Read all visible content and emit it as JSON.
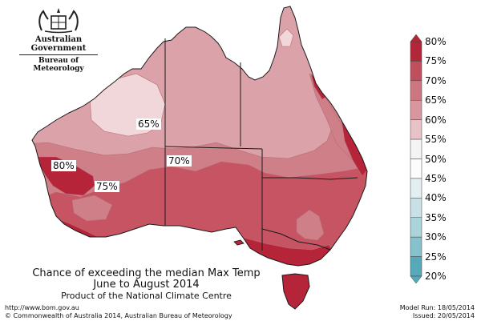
{
  "header": {
    "org_name": "Australian Government",
    "bureau": "Bureau of Meteorology"
  },
  "colors": {
    "land_outline": "#1a1a1a",
    "state_border": "#1a1a1a",
    "legend_bins": [
      "#55a9b8",
      "#86c2cc",
      "#abd3da",
      "#c9e1e6",
      "#e2eef0",
      "#fcfcfc",
      "#f4f4f4",
      "#e8c2c6",
      "#d9969e",
      "#cc7680",
      "#c04f5e",
      "#b12739"
    ],
    "zones": {
      "p60": "#f1d7d9",
      "p65": "#dba3a9",
      "p70": "#cf7f88",
      "p75": "#c65462",
      "p80": "#b52438"
    }
  },
  "map_labels": [
    {
      "id": "label-65",
      "text": "65%"
    },
    {
      "id": "label-70",
      "text": "70%"
    },
    {
      "id": "label-80",
      "text": "80%"
    },
    {
      "id": "label-75",
      "text": "75%"
    }
  ],
  "legend": {
    "ticks": [
      "80%",
      "75%",
      "70%",
      "65%",
      "60%",
      "55%",
      "50%",
      "45%",
      "40%",
      "35%",
      "30%",
      "25%",
      "20%"
    ]
  },
  "caption": {
    "line1": "Chance of exceeding the median Max Temp",
    "line2": "June to August 2014",
    "line3": "Product of the National Climate Centre"
  },
  "footer": {
    "url": "http://www.bom.gov.au",
    "copyright": "©  Commonwealth of Australia 2014, Australian Bureau of Meteorology",
    "model_run": "Model Run: 18/05/2014",
    "issued": "Issued: 20/05/2014"
  }
}
